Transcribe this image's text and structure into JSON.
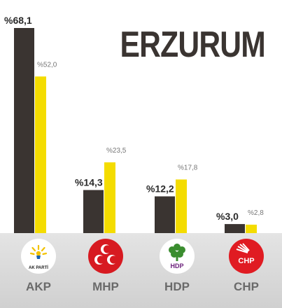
{
  "title": "ERZURUM",
  "chart_data": {
    "type": "bar",
    "title": "ERZURUM",
    "categories": [
      "AKP",
      "MHP",
      "HDP",
      "CHP"
    ],
    "series": [
      {
        "values": [
          68.1,
          14.3,
          12.2,
          3.0
        ],
        "labels": [
          "%68,1",
          "%14,3",
          "%12,2",
          "%3,0"
        ],
        "color": "#3a3431"
      },
      {
        "values": [
          52.0,
          23.5,
          17.8,
          2.8
        ],
        "labels": [
          "%52,0",
          "%23,5",
          "%17,8",
          "%2,8"
        ],
        "color": "#f4dc00"
      }
    ],
    "ylim": [
      0,
      68.1
    ],
    "grid": false,
    "legend": "none"
  },
  "parties": [
    {
      "name": "AKP",
      "icon": "akp-logo-icon",
      "logo_text": "AK PARTİ"
    },
    {
      "name": "MHP",
      "icon": "mhp-logo-icon"
    },
    {
      "name": "HDP",
      "icon": "hdp-logo-icon",
      "logo_text": "HDP"
    },
    {
      "name": "CHP",
      "icon": "chp-logo-icon",
      "logo_text": "CHP"
    }
  ]
}
